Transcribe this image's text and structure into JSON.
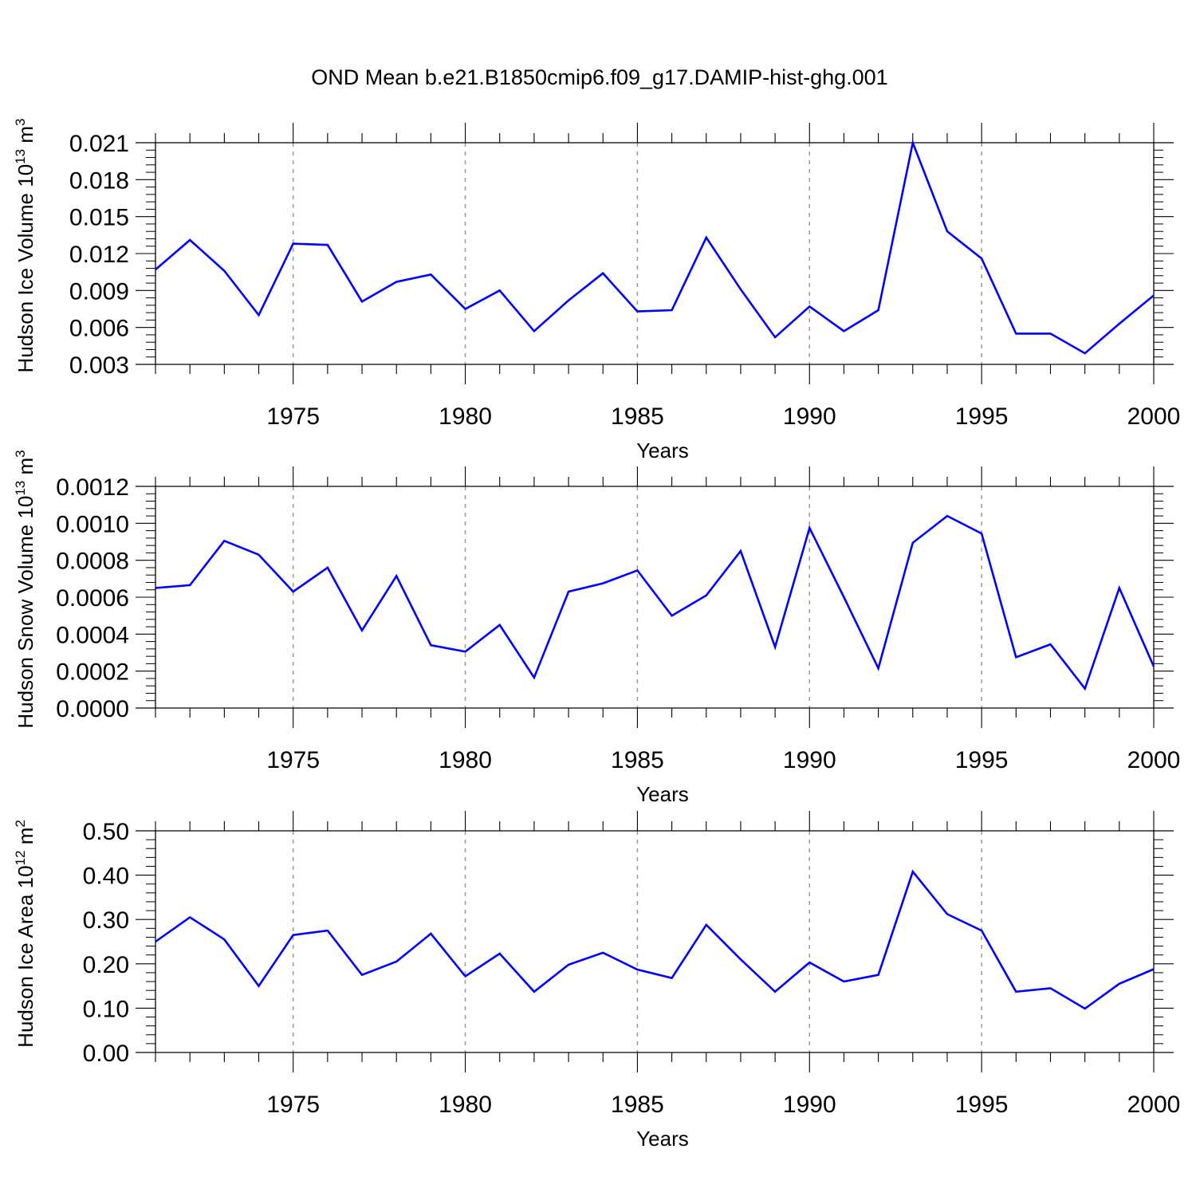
{
  "title": "OND Mean b.e21.B1850cmip6.f09_g17.DAMIP-hist-ghg.001",
  "colors": {
    "series": "#0000ff",
    "grid": "#999999",
    "axes": "#000000"
  },
  "chart_data": [
    {
      "type": "line",
      "xlabel": "Years",
      "ylabel": {
        "base": "Hudson Ice Volume 10",
        "exp": "13",
        "unit": " m",
        "unit_exp": "3"
      },
      "xlim": [
        1971,
        2000
      ],
      "ylim": [
        0.003,
        0.021
      ],
      "xticks": [
        "1975",
        "1980",
        "1985",
        "1990",
        "1995",
        "2000"
      ],
      "yticks": [
        "0.003",
        "0.006",
        "0.009",
        "0.012",
        "0.015",
        "0.018",
        "0.021"
      ],
      "grid": "vertical dashed at major x ticks",
      "x": [
        1971,
        1972,
        1973,
        1974,
        1975,
        1976,
        1977,
        1978,
        1979,
        1980,
        1981,
        1982,
        1983,
        1984,
        1985,
        1986,
        1987,
        1988,
        1989,
        1990,
        1991,
        1992,
        1993,
        1994,
        1995,
        1996,
        1997,
        1998,
        1999,
        2000
      ],
      "values": [
        0.0107,
        0.0131,
        0.0106,
        0.007,
        0.0128,
        0.0127,
        0.0081,
        0.0097,
        0.0103,
        0.0075,
        0.009,
        0.0057,
        0.0082,
        0.0104,
        0.0073,
        0.0074,
        0.0133,
        0.0091,
        0.0052,
        0.0077,
        0.0057,
        0.0074,
        0.021,
        0.0138,
        0.0116,
        0.0055,
        0.0055,
        0.0039,
        0.0063,
        0.0086
      ]
    },
    {
      "type": "line",
      "xlabel": "Years",
      "ylabel": {
        "base": "Hudson Snow Volume 10",
        "exp": "13",
        "unit": " m",
        "unit_exp": "3"
      },
      "xlim": [
        1971,
        2000
      ],
      "ylim": [
        0.0,
        0.0012
      ],
      "xticks": [
        "1975",
        "1980",
        "1985",
        "1990",
        "1995",
        "2000"
      ],
      "yticks": [
        "0.0000",
        "0.0002",
        "0.0004",
        "0.0006",
        "0.0008",
        "0.0010",
        "0.0012"
      ],
      "grid": "vertical dashed at major x ticks",
      "x": [
        1971,
        1972,
        1973,
        1974,
        1975,
        1976,
        1977,
        1978,
        1979,
        1980,
        1981,
        1982,
        1983,
        1984,
        1985,
        1986,
        1987,
        1988,
        1989,
        1990,
        1991,
        1992,
        1993,
        1994,
        1995,
        1996,
        1997,
        1998,
        1999,
        2000
      ],
      "values": [
        0.00065,
        0.000665,
        0.000905,
        0.00083,
        0.00063,
        0.00076,
        0.00042,
        0.000715,
        0.00034,
        0.000305,
        0.00045,
        0.000165,
        0.00063,
        0.000675,
        0.000745,
        0.0005,
        0.00061,
        0.00085,
        0.00033,
        0.000975,
        0.0006,
        0.000215,
        0.000895,
        0.00104,
        0.000945,
        0.000275,
        0.000345,
        0.000105,
        0.00065,
        0.000225
      ]
    },
    {
      "type": "line",
      "xlabel": "Years",
      "ylabel": {
        "base": "Hudson Ice Area 10",
        "exp": "12",
        "unit": " m",
        "unit_exp": "2"
      },
      "xlim": [
        1971,
        2000
      ],
      "ylim": [
        0.0,
        0.5
      ],
      "xticks": [
        "1975",
        "1980",
        "1985",
        "1990",
        "1995",
        "2000"
      ],
      "yticks": [
        "0.00",
        "0.10",
        "0.20",
        "0.30",
        "0.40",
        "0.50"
      ],
      "grid": "vertical dashed at major x ticks",
      "x": [
        1971,
        1972,
        1973,
        1974,
        1975,
        1976,
        1977,
        1978,
        1979,
        1980,
        1981,
        1982,
        1983,
        1984,
        1985,
        1986,
        1987,
        1988,
        1989,
        1990,
        1991,
        1992,
        1993,
        1994,
        1995,
        1996,
        1997,
        1998,
        1999,
        2000
      ],
      "values": [
        0.25,
        0.305,
        0.255,
        0.15,
        0.265,
        0.275,
        0.175,
        0.205,
        0.268,
        0.172,
        0.223,
        0.137,
        0.198,
        0.225,
        0.187,
        0.168,
        0.288,
        0.21,
        0.137,
        0.203,
        0.16,
        0.175,
        0.408,
        0.312,
        0.275,
        0.137,
        0.145,
        0.099,
        0.155,
        0.188
      ]
    }
  ]
}
